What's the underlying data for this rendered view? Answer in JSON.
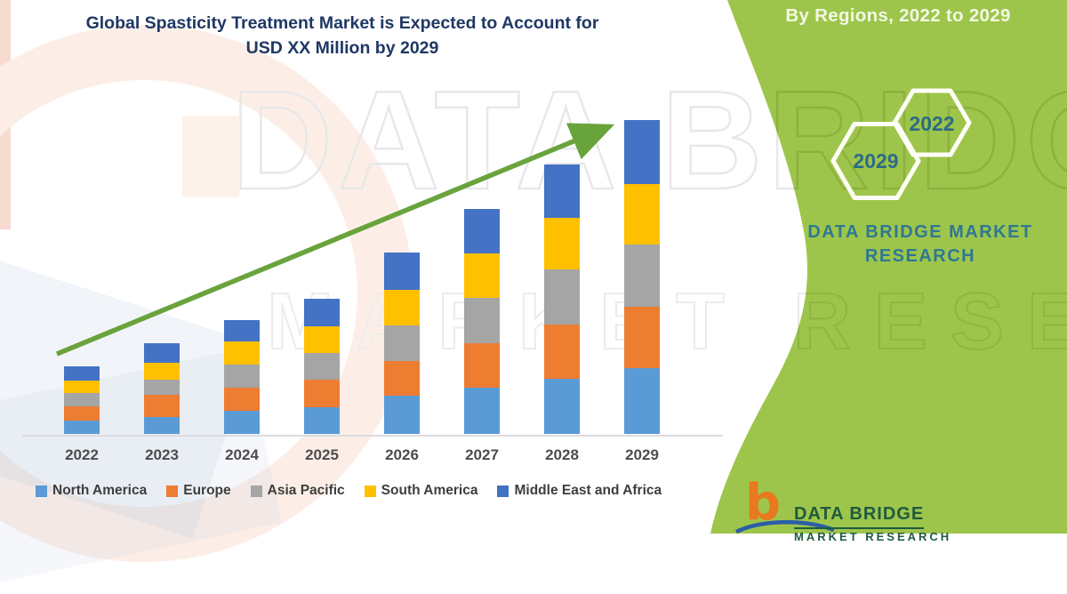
{
  "title": {
    "line1": "Global Spasticity Treatment Market is Expected to Account for",
    "line2": "USD XX Million by 2029"
  },
  "side_panel": {
    "heading": "By Regions, 2022 to 2029",
    "hexagon_labels": [
      "2029",
      "2022"
    ],
    "brand_line1": "DATA BRIDGE MARKET",
    "brand_line2": "RESEARCH"
  },
  "footer": {
    "logo_icon": "data-bridge-b-logo",
    "brand": "DATA BRIDGE",
    "brand_sub": "MARKET RESEARCH"
  },
  "watermark": {
    "line1": "DATA BRIDGE",
    "line2": "MARKET RESEARCH"
  },
  "colors": {
    "panel_green": "#9EC54B",
    "title_navy": "#1F3864",
    "arrow_green": "#69A33C",
    "hex_number_teal": "#2C6B84",
    "panel_brand_teal": "#2E7893",
    "footer_green": "#1E5B3E",
    "footer_orange": "#E8791F",
    "axis_gray": "#d9dde2"
  },
  "chart_data": {
    "type": "bar",
    "stacked": true,
    "title": "Global Spasticity Treatment Market is Expected to Account for USD XX Million by 2029",
    "categories": [
      "2022",
      "2023",
      "2024",
      "2025",
      "2026",
      "2027",
      "2028",
      "2029"
    ],
    "series": [
      {
        "name": "North America",
        "color": "#5B9BD5",
        "values": [
          15,
          19,
          26,
          30,
          43,
          52,
          62,
          74
        ]
      },
      {
        "name": "Europe",
        "color": "#ED7D31",
        "values": [
          16,
          25,
          26,
          31,
          39,
          50,
          61,
          69
        ]
      },
      {
        "name": "Asia Pacific",
        "color": "#A5A5A5",
        "values": [
          15,
          17,
          26,
          30,
          40,
          51,
          62,
          70
        ]
      },
      {
        "name": "South America",
        "color": "#FFC000",
        "values": [
          14,
          19,
          26,
          30,
          40,
          50,
          58,
          68
        ]
      },
      {
        "name": "Middle East and Africa",
        "color": "#4472C4",
        "values": [
          16,
          22,
          24,
          31,
          42,
          50,
          60,
          72
        ]
      }
    ],
    "stack_totals": [
      76,
      102,
      128,
      152,
      204,
      253,
      303,
      353
    ],
    "value_axis": "unlabeled — actual figures masked as USD XX Million; values are relative units",
    "grid": false,
    "legend_position": "bottom",
    "trend_arrow": "up-right"
  }
}
